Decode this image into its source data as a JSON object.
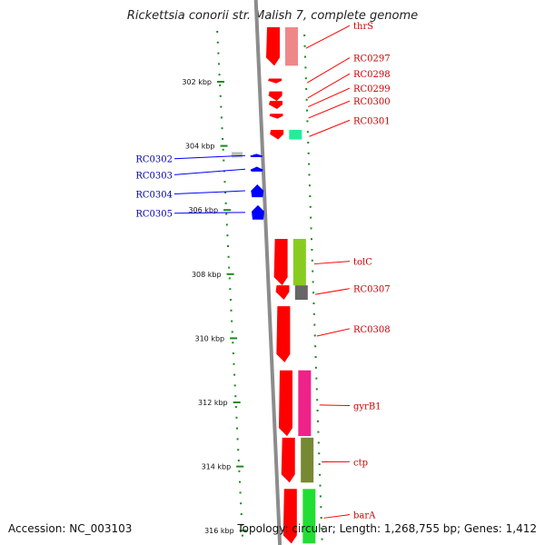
{
  "title": "Rickettsia conorii str. Malish 7, complete genome",
  "footer": {
    "accession": "Accession: NC_003103",
    "summary": "Topology: circular; Length: 1,268,755 bp; Genes: 1,412"
  },
  "colors": {
    "reverse_gene": "#ff0000",
    "forward_gene": "#0000ff",
    "ruler_tick": "#1a8a1a",
    "backbone": "#8c8c8c",
    "label_red": "#cc0000",
    "label_blue": "#0000aa"
  },
  "chart_data": {
    "type": "genome-map",
    "scale_unit": "kbp",
    "ticks": [
      {
        "kbp": 302,
        "label": "302 kbp"
      },
      {
        "kbp": 304,
        "label": "304 kbp"
      },
      {
        "kbp": 306,
        "label": "306 kbp"
      },
      {
        "kbp": 308,
        "label": "308 kbp"
      },
      {
        "kbp": 310,
        "label": "310 kbp"
      },
      {
        "kbp": 312,
        "label": "312 kbp"
      },
      {
        "kbp": 314,
        "label": "314 kbp"
      },
      {
        "kbp": 316,
        "label": "316 kbp"
      }
    ],
    "range_kbp": [
      300.0,
      316.4
    ],
    "genes": [
      {
        "name": "thrS",
        "strand": "-",
        "start_kbp": 300.0,
        "end_kbp": 301.5,
        "annot_color": "#ee8888"
      },
      {
        "name": "RC0297",
        "strand": "-",
        "start_kbp": 301.9,
        "end_kbp": 302.05,
        "annot_color": ""
      },
      {
        "name": "RC0298",
        "strand": "-",
        "start_kbp": 302.3,
        "end_kbp": 302.6,
        "annot_color": ""
      },
      {
        "name": "RC0299",
        "strand": "-",
        "start_kbp": 302.6,
        "end_kbp": 302.85,
        "annot_color": ""
      },
      {
        "name": "RC0300",
        "strand": "-",
        "start_kbp": 303.0,
        "end_kbp": 303.15,
        "annot_color": ""
      },
      {
        "name": "RC0301",
        "strand": "-",
        "start_kbp": 303.5,
        "end_kbp": 303.8,
        "annot_color": "#22ee99"
      },
      {
        "name": "RC0302",
        "strand": "+",
        "start_kbp": 304.25,
        "end_kbp": 304.35,
        "annot_color": "#bbbbbb"
      },
      {
        "name": "RC0303",
        "strand": "+",
        "start_kbp": 304.65,
        "end_kbp": 304.8,
        "annot_color": ""
      },
      {
        "name": "RC0304",
        "strand": "+",
        "start_kbp": 305.2,
        "end_kbp": 305.6,
        "annot_color": ""
      },
      {
        "name": "RC0305",
        "strand": "+",
        "start_kbp": 305.85,
        "end_kbp": 306.3,
        "annot_color": ""
      },
      {
        "name": "tolC",
        "strand": "-",
        "start_kbp": 306.9,
        "end_kbp": 308.35,
        "annot_color": "#88cc22"
      },
      {
        "name": "RC0307",
        "strand": "-",
        "start_kbp": 308.35,
        "end_kbp": 308.8,
        "annot_color": "#666666"
      },
      {
        "name": "RC0308",
        "strand": "-",
        "start_kbp": 309.0,
        "end_kbp": 310.75,
        "annot_color": ""
      },
      {
        "name": "gyrB1",
        "strand": "-",
        "start_kbp": 311.0,
        "end_kbp": 313.05,
        "annot_color": "#ee2288"
      },
      {
        "name": "ctp",
        "strand": "-",
        "start_kbp": 313.1,
        "end_kbp": 314.5,
        "annot_color": "#778833"
      },
      {
        "name": "barA",
        "strand": "-",
        "start_kbp": 314.7,
        "end_kbp": 316.4,
        "annot_color": "#22dd33"
      }
    ],
    "label_y_kbp": {
      "thrS": 300.25,
      "RC0297": 301.25,
      "RC0298": 301.75,
      "RC0299": 302.2,
      "RC0300": 302.6,
      "RC0301": 303.2,
      "RC0302": 304.4,
      "RC0303": 304.9,
      "RC0304": 305.5,
      "RC0305": 306.1,
      "tolC": 307.6,
      "RC0307": 308.45,
      "RC0308": 309.7,
      "gyrB1": 312.1,
      "ctp": 313.85,
      "barA": 315.5
    }
  }
}
